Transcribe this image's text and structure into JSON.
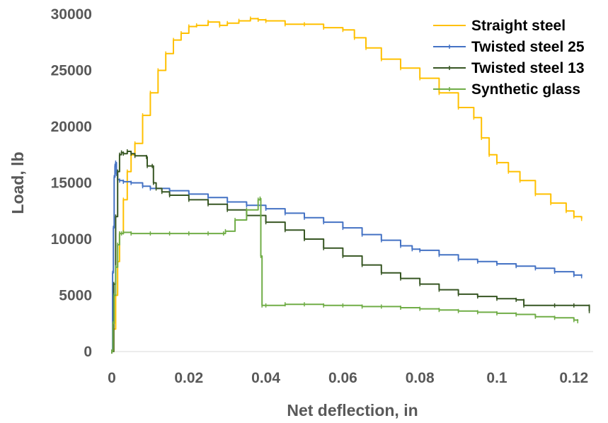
{
  "chart_data": {
    "type": "line",
    "xlabel": "Net deflection, in",
    "ylabel": "Load, lb",
    "xlim": [
      0,
      0.125
    ],
    "ylim": [
      0,
      30000
    ],
    "xticks": [
      0,
      0.02,
      0.04,
      0.06,
      0.08,
      0.1,
      0.12
    ],
    "xtick_labels": [
      "0",
      "0.02",
      "0.04",
      "0.06",
      "0.08",
      "0.1",
      "0.12"
    ],
    "yticks": [
      0,
      5000,
      10000,
      15000,
      20000,
      25000,
      30000
    ],
    "ytick_labels": [
      "0",
      "5000",
      "10000",
      "15000",
      "20000",
      "25000",
      "30000"
    ],
    "grid": false,
    "legend_position": "top-right",
    "series": [
      {
        "name": "Straight steel",
        "color": "#FFC000",
        "x": [
          0,
          0.0005,
          0.001,
          0.0015,
          0.002,
          0.003,
          0.004,
          0.005,
          0.006,
          0.008,
          0.01,
          0.012,
          0.014,
          0.016,
          0.018,
          0.02,
          0.022,
          0.025,
          0.028,
          0.03,
          0.033,
          0.036,
          0.038,
          0.04,
          0.045,
          0.05,
          0.055,
          0.06,
          0.063,
          0.066,
          0.07,
          0.075,
          0.08,
          0.085,
          0.09,
          0.094,
          0.096,
          0.098,
          0.1,
          0.103,
          0.106,
          0.11,
          0.114,
          0.118,
          0.12,
          0.122
        ],
        "values": [
          0,
          2000,
          5000,
          8000,
          10500,
          13500,
          16000,
          17500,
          18500,
          21000,
          23000,
          25000,
          26500,
          27700,
          28300,
          28900,
          29000,
          29300,
          29000,
          29200,
          29400,
          29600,
          29500,
          29400,
          29100,
          29100,
          28800,
          28600,
          27900,
          27000,
          26000,
          25200,
          24300,
          23000,
          21700,
          20800,
          19000,
          17500,
          16800,
          16000,
          15200,
          14000,
          13200,
          12500,
          12000,
          11800
        ]
      },
      {
        "name": "Twisted steel 25",
        "color": "#4472C4",
        "x": [
          0,
          0.0002,
          0.0004,
          0.0006,
          0.0008,
          0.001,
          0.0012,
          0.0015,
          0.002,
          0.003,
          0.005,
          0.008,
          0.01,
          0.015,
          0.02,
          0.025,
          0.03,
          0.035,
          0.04,
          0.045,
          0.05,
          0.055,
          0.06,
          0.065,
          0.07,
          0.075,
          0.078,
          0.08,
          0.085,
          0.09,
          0.095,
          0.1,
          0.105,
          0.11,
          0.115,
          0.12,
          0.122
        ],
        "values": [
          0,
          7000,
          11000,
          15500,
          16500,
          16800,
          15800,
          15300,
          15200,
          15100,
          15000,
          14700,
          14500,
          14300,
          14000,
          13700,
          13300,
          13000,
          12700,
          12300,
          11900,
          11500,
          11000,
          10400,
          9900,
          9400,
          9100,
          9000,
          8600,
          8200,
          8000,
          7800,
          7600,
          7400,
          7100,
          6800,
          6700
        ]
      },
      {
        "name": "Twisted steel 13",
        "color": "#375623",
        "x": [
          0,
          0.0005,
          0.001,
          0.0015,
          0.002,
          0.0025,
          0.003,
          0.004,
          0.005,
          0.006,
          0.009,
          0.0092,
          0.0105,
          0.0108,
          0.0115,
          0.013,
          0.015,
          0.02,
          0.025,
          0.03,
          0.035,
          0.04,
          0.045,
          0.05,
          0.055,
          0.06,
          0.065,
          0.07,
          0.075,
          0.08,
          0.085,
          0.09,
          0.095,
          0.1,
          0.105,
          0.107,
          0.107,
          0.115,
          0.12,
          0.124,
          0.124
        ],
        "values": [
          0,
          6000,
          12000,
          16000,
          17500,
          17700,
          17600,
          17800,
          17600,
          17400,
          17300,
          16500,
          16500,
          15000,
          14500,
          14200,
          13900,
          13500,
          13100,
          12600,
          12100,
          11500,
          10800,
          10000,
          9200,
          8500,
          7700,
          7000,
          6500,
          6000,
          5500,
          5100,
          4900,
          4700,
          4600,
          4500,
          4100,
          4100,
          4100,
          4000,
          3600
        ]
      },
      {
        "name": "Synthetic glass",
        "color": "#70AD47",
        "x": [
          0,
          0.0003,
          0.0006,
          0.001,
          0.0015,
          0.002,
          0.0025,
          0.003,
          0.005,
          0.01,
          0.015,
          0.02,
          0.025,
          0.029,
          0.0295,
          0.032,
          0.035,
          0.038,
          0.0385,
          0.0387,
          0.039,
          0.04,
          0.045,
          0.05,
          0.055,
          0.06,
          0.065,
          0.07,
          0.075,
          0.08,
          0.085,
          0.09,
          0.095,
          0.1,
          0.105,
          0.11,
          0.115,
          0.12,
          0.121
        ],
        "values": [
          0,
          2500,
          5000,
          7500,
          9500,
          10500,
          10500,
          10600,
          10500,
          10500,
          10500,
          10500,
          10500,
          10500,
          10700,
          11700,
          12600,
          13500,
          13600,
          8500,
          4100,
          4100,
          4200,
          4200,
          4100,
          4100,
          4000,
          4000,
          3900,
          3800,
          3700,
          3600,
          3500,
          3400,
          3300,
          3100,
          3000,
          2800,
          2700
        ]
      }
    ]
  }
}
